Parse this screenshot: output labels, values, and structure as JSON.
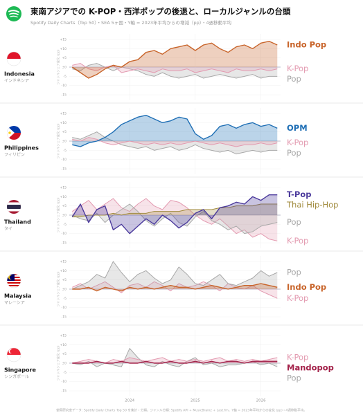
{
  "title": "東南アジアでの K-POP・西洋ポップの後退と、ローカルジャンルの台頭",
  "subtitle": "Spotify Daily Charts（Top 50）・SEA 5ヶ国・Y軸 = 2023年平均からの増減（pp）・4週移動平均",
  "source": "使用研究室データ: Spotify Daily Charts Top 50 を集計・分類。ジャンル分類: Spotify API + MusicBrainz + Last.fm。Y軸 = 2023年平均からの変化 (pp)・4週移動平均。",
  "chart_data": [
    {
      "type": "area",
      "title": "Indonesia",
      "subtitle": "インドネシア",
      "ylabel": "ジャンルシェア変化 (pp)",
      "x": [
        2023.125,
        2023.25,
        2023.375,
        2023.5,
        2023.625,
        2023.75,
        2023.875,
        2024,
        2024.125,
        2024.25,
        2024.375,
        2024.5,
        2024.625,
        2024.75,
        2024.875,
        2025,
        2025.125,
        2025.25,
        2025.375,
        2025.5,
        2025.625,
        2025.75,
        2025.875,
        2026,
        2026.125,
        2026.25
      ],
      "xlim": [
        2023.08,
        2026.3
      ],
      "ylim": [
        -18,
        18
      ],
      "yticks": [
        {
          "value": 15,
          "label": "+15"
        },
        {
          "value": 10,
          "label": "+10"
        },
        {
          "value": 5,
          "label": "+5"
        },
        {
          "value": 0,
          "label": "±0"
        },
        -5,
        -10,
        -15
      ],
      "series": [
        {
          "name": "Indo Pop",
          "color": "#c8642a",
          "values": [
            0,
            -3,
            -6,
            -4,
            -1,
            1,
            0,
            3,
            4,
            8,
            9,
            7,
            10,
            11,
            12,
            9,
            12,
            13,
            10,
            8,
            11,
            12,
            10,
            13,
            14,
            12
          ]
        },
        {
          "name": "K-Pop",
          "color": "#e39ab0",
          "values": [
            1,
            2,
            -1,
            -2,
            0,
            1,
            -3,
            -2,
            -1,
            -2,
            -3,
            -1,
            -2,
            -2,
            -1,
            -3,
            -2,
            -1,
            -2,
            -3,
            -1,
            -2,
            -2,
            -1,
            -2,
            -1
          ]
        },
        {
          "name": "Pop",
          "color": "#a8a8a8",
          "values": [
            -1,
            -2,
            1,
            2,
            0,
            -2,
            0,
            -1,
            -2,
            -4,
            -5,
            -3,
            -5,
            -6,
            -5,
            -4,
            -6,
            -5,
            -4,
            -5,
            -6,
            -5,
            -4,
            -6,
            -5,
            -5
          ]
        }
      ]
    },
    {
      "type": "area",
      "title": "Philippines",
      "subtitle": "フィリピン",
      "ylabel": "ジャンルシェア変化 (pp)",
      "x": [
        2023.125,
        2023.25,
        2023.375,
        2023.5,
        2023.625,
        2023.75,
        2023.875,
        2024,
        2024.125,
        2024.25,
        2024.375,
        2024.5,
        2024.625,
        2024.75,
        2024.875,
        2025,
        2025.125,
        2025.25,
        2025.375,
        2025.5,
        2025.625,
        2025.75,
        2025.875,
        2026,
        2026.125,
        2026.25
      ],
      "xlim": [
        2023.08,
        2026.3
      ],
      "ylim": [
        -18,
        18
      ],
      "yticks": [
        {
          "value": 15,
          "label": "+15"
        },
        {
          "value": 10,
          "label": "+10"
        },
        {
          "value": 5,
          "label": "+5"
        },
        {
          "value": 0,
          "label": "±0"
        },
        -5,
        -10,
        -15
      ],
      "series": [
        {
          "name": "OPM",
          "color": "#1f6fb5",
          "values": [
            -2,
            -3,
            -1,
            0,
            2,
            5,
            9,
            11,
            13,
            14,
            12,
            10,
            11,
            13,
            12,
            4,
            1,
            3,
            8,
            9,
            7,
            9,
            10,
            8,
            9,
            7
          ]
        },
        {
          "name": "K-Pop",
          "color": "#e39ab0",
          "values": [
            1,
            0,
            2,
            1,
            -1,
            -2,
            -1,
            0,
            -1,
            -2,
            -1,
            -2,
            -1,
            -2,
            -1,
            0,
            -1,
            -2,
            -1,
            -2,
            -3,
            -2,
            -2,
            -1,
            -2,
            -1
          ]
        },
        {
          "name": "Pop",
          "color": "#a8a8a8",
          "values": [
            2,
            1,
            3,
            5,
            2,
            0,
            -2,
            -3,
            -4,
            -3,
            -5,
            -4,
            -3,
            -5,
            -4,
            -2,
            -4,
            -5,
            -6,
            -5,
            -7,
            -6,
            -5,
            -6,
            -5,
            -5
          ]
        }
      ]
    },
    {
      "type": "area",
      "title": "Thailand",
      "subtitle": "タイ",
      "ylabel": "ジャンルシェア変化 (pp)",
      "x": [
        2023.125,
        2023.25,
        2023.375,
        2023.5,
        2023.625,
        2023.75,
        2023.875,
        2024,
        2024.125,
        2024.25,
        2024.375,
        2024.5,
        2024.625,
        2024.75,
        2024.875,
        2025,
        2025.125,
        2025.25,
        2025.375,
        2025.5,
        2025.625,
        2025.75,
        2025.875,
        2026,
        2026.125,
        2026.25
      ],
      "xlim": [
        2023.08,
        2026.3
      ],
      "ylim": [
        -18,
        18
      ],
      "yticks": [
        {
          "value": 15,
          "label": "+15"
        },
        {
          "value": 10,
          "label": "+10"
        },
        {
          "value": 5,
          "label": "+5"
        },
        {
          "value": 0,
          "label": "±0"
        },
        -5,
        -10,
        -15
      ],
      "series": [
        {
          "name": "T-Pop",
          "color": "#4b3a9c",
          "values": [
            -1,
            6,
            -4,
            3,
            5,
            -8,
            -5,
            -10,
            -6,
            -2,
            -5,
            0,
            -3,
            -7,
            -4,
            1,
            3,
            -2,
            4,
            5,
            7,
            6,
            10,
            8,
            11,
            11
          ]
        },
        {
          "name": "Thai Hip-Hop",
          "color": "#a08a3c",
          "values": [
            -1,
            -1,
            0,
            0,
            0,
            1,
            0,
            1,
            1,
            1,
            2,
            2,
            2,
            2,
            3,
            3,
            3,
            3,
            4,
            4,
            5,
            5,
            5,
            6,
            6,
            6
          ]
        },
        {
          "name": "Pop",
          "color": "#a8a8a8",
          "values": [
            0,
            -2,
            -3,
            1,
            -4,
            0,
            3,
            6,
            2,
            -3,
            -6,
            -2,
            1,
            -4,
            -6,
            -1,
            2,
            -3,
            -5,
            -8,
            -6,
            -10,
            -9,
            -6,
            -5,
            -4
          ]
        },
        {
          "name": "K-Pop",
          "color": "#e39ab0",
          "values": [
            2,
            5,
            8,
            3,
            6,
            9,
            4,
            2,
            6,
            9,
            5,
            3,
            8,
            7,
            4,
            0,
            -3,
            -5,
            -2,
            -6,
            -10,
            -8,
            -12,
            -10,
            -13,
            -14
          ]
        }
      ]
    },
    {
      "type": "area",
      "title": "Malaysia",
      "subtitle": "マレーシア",
      "ylabel": "ジャンルシェア変化 (pp)",
      "x": [
        2023.125,
        2023.25,
        2023.375,
        2023.5,
        2023.625,
        2023.75,
        2023.875,
        2024,
        2024.125,
        2024.25,
        2024.375,
        2024.5,
        2024.625,
        2024.75,
        2024.875,
        2025,
        2025.125,
        2025.25,
        2025.375,
        2025.5,
        2025.625,
        2025.75,
        2025.875,
        2026,
        2026.125,
        2026.25
      ],
      "xlim": [
        2023.08,
        2026.3
      ],
      "ylim": [
        -18,
        18
      ],
      "yticks": [
        {
          "value": 15,
          "label": "+15"
        },
        {
          "value": 10,
          "label": "+10"
        },
        {
          "value": 5,
          "label": "+5"
        },
        {
          "value": 0,
          "label": "±0"
        },
        -5,
        -10,
        -15
      ],
      "series": [
        {
          "name": "Indo Pop",
          "color": "#c8642a",
          "values": [
            0,
            0,
            1,
            -1,
            1,
            0,
            -1,
            1,
            0,
            1,
            0,
            1,
            2,
            1,
            1,
            0,
            1,
            2,
            1,
            0,
            1,
            2,
            2,
            3,
            2,
            1
          ]
        },
        {
          "name": "Pop",
          "color": "#a8a8a8",
          "values": [
            0,
            2,
            4,
            8,
            6,
            15,
            9,
            4,
            8,
            10,
            6,
            3,
            5,
            12,
            8,
            3,
            2,
            5,
            8,
            3,
            2,
            4,
            6,
            10,
            7,
            9
          ]
        },
        {
          "name": "K-Pop",
          "color": "#e39ab0",
          "values": [
            1,
            3,
            0,
            2,
            4,
            1,
            -2,
            2,
            3,
            1,
            4,
            2,
            -1,
            3,
            1,
            2,
            4,
            2,
            -1,
            3,
            1,
            0,
            2,
            -1,
            -3,
            -5
          ]
        }
      ]
    },
    {
      "type": "area",
      "title": "Singapore",
      "subtitle": "シンガポール",
      "ylabel": "ジャンルシェア変化 (pp)",
      "x": [
        2023.125,
        2023.25,
        2023.375,
        2023.5,
        2023.625,
        2023.75,
        2023.875,
        2024,
        2024.125,
        2024.25,
        2024.375,
        2024.5,
        2024.625,
        2024.75,
        2024.875,
        2025,
        2025.125,
        2025.25,
        2025.375,
        2025.5,
        2025.625,
        2025.75,
        2025.875,
        2026,
        2026.125,
        2026.25
      ],
      "xlim": [
        2023.08,
        2026.3
      ],
      "ylim": [
        -18,
        18
      ],
      "yticks": [
        {
          "value": 15,
          "label": "+15"
        },
        {
          "value": 10,
          "label": "+10"
        },
        {
          "value": 5,
          "label": "+5"
        },
        {
          "value": 0,
          "label": "±0"
        },
        -5,
        -10,
        -15
      ],
      "xticks": [
        2024,
        2025,
        2026
      ],
      "series": [
        {
          "name": "Mandopop",
          "color": "#a3224a",
          "values": [
            0,
            0,
            0,
            1,
            0,
            0,
            1,
            0,
            0,
            1,
            0,
            0,
            1,
            0,
            0,
            1,
            0,
            1,
            0,
            1,
            1,
            0,
            1,
            1,
            1,
            1
          ]
        },
        {
          "name": "K-Pop",
          "color": "#e39ab0",
          "values": [
            0,
            1,
            2,
            1,
            0,
            2,
            1,
            3,
            2,
            1,
            2,
            3,
            1,
            2,
            1,
            2,
            1,
            2,
            3,
            1,
            2,
            1,
            2,
            1,
            2,
            3
          ]
        },
        {
          "name": "Pop",
          "color": "#a8a8a8",
          "values": [
            0,
            -1,
            1,
            -2,
            0,
            -1,
            -2,
            8,
            3,
            -1,
            -2,
            1,
            -1,
            -2,
            1,
            3,
            -1,
            0,
            -2,
            -1,
            -1,
            0,
            1,
            -1,
            0,
            -2
          ]
        }
      ]
    }
  ]
}
